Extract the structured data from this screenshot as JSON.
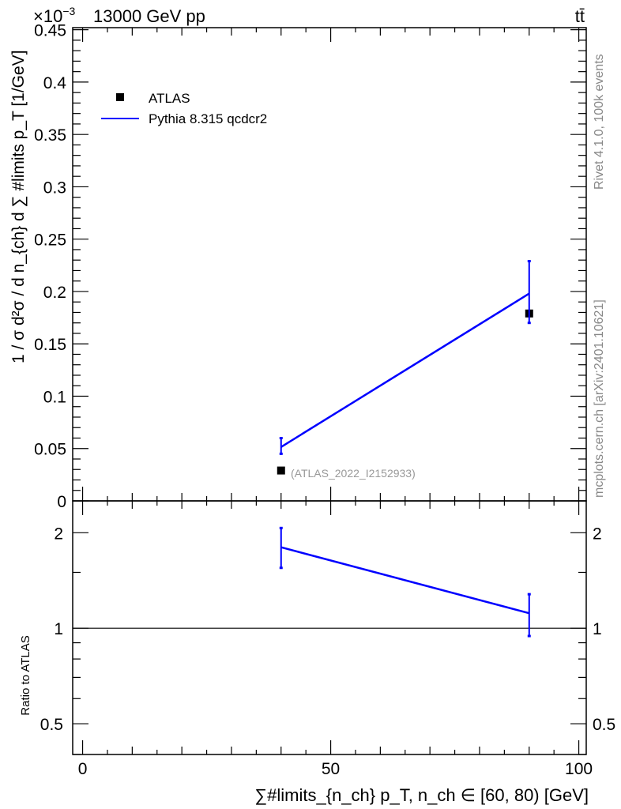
{
  "chart_data": [
    {
      "type": "line",
      "title_left": "13000 GeV pp",
      "title_right": "tt̄",
      "multiplier": "×10",
      "multiplier_exp": "−3",
      "ylabel": "1 / σ d²σ / d n_{ch} d ∑ #limits p_T [1/GeV]",
      "xlabel": "∑#limits_{n_ch} p_T, n_ch ∈ [60, 80) [GeV]",
      "xlim": [
        -2,
        101.5
      ],
      "ylim": [
        0,
        0.452
      ],
      "xticks": [
        "0",
        "50",
        "100"
      ],
      "yticks": [
        "0",
        "0.05",
        "0.1",
        "0.15",
        "0.2",
        "0.25",
        "0.3",
        "0.35",
        "0.4",
        "0.45"
      ],
      "legend": {
        "placement": "top-left",
        "entries": [
          "ATLAS",
          "Pythia 8.315 qcdcr2"
        ]
      },
      "analysis_label": "(ATLAS_2022_I2152933)",
      "side_labels": [
        "Rivet 4.1.0,  100k events",
        "mcplots.cern.ch [arXiv:2401.10621]"
      ],
      "series": [
        {
          "name": "ATLAS",
          "style": "markers",
          "color": "#000000",
          "x": [
            40,
            90
          ],
          "y": [
            0.029,
            0.179
          ]
        },
        {
          "name": "Pythia 8.315 qcdcr2",
          "style": "line",
          "color": "#0000ff",
          "x": [
            40,
            90
          ],
          "y": [
            0.0515,
            0.198
          ],
          "yerr_low": [
            0.045,
            0.17
          ],
          "yerr_high": [
            0.06,
            0.229
          ]
        }
      ]
    },
    {
      "type": "line",
      "ylabel": "Ratio to ATLAS",
      "yscale": "log",
      "ylim": [
        0.4,
        2.52
      ],
      "yticks": [
        "0.5",
        "1",
        "2"
      ],
      "reference_line": 1,
      "series": [
        {
          "name": "Pythia 8.315 qcdcr2",
          "color": "#0000ff",
          "x": [
            40,
            90
          ],
          "y": [
            1.8,
            1.115
          ],
          "yerr_low": [
            1.55,
            0.945
          ],
          "yerr_high": [
            2.07,
            1.28
          ]
        }
      ]
    }
  ]
}
